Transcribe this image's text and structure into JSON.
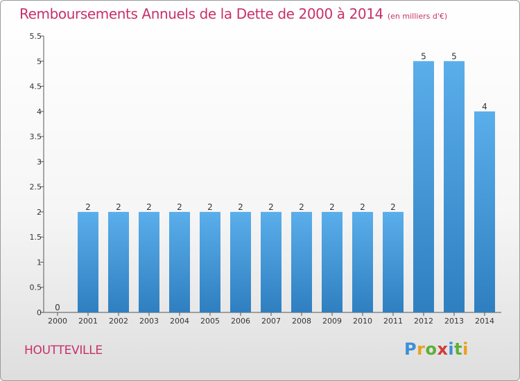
{
  "header": {
    "title": "Remboursements Annuels de la Dette de 2000 à 2014",
    "subtitle": "(en milliers d'€)"
  },
  "footer": {
    "commune": "HOUTTEVILLE",
    "logo_letters": [
      "P",
      "r",
      "o",
      "x",
      "i",
      "t",
      "i"
    ]
  },
  "colors": {
    "title": "#c8306a",
    "bar_top": "#5aaeea",
    "bar_bottom": "#2f7fc0",
    "logo": [
      "#3a8fd8",
      "#e8a020",
      "#5cb035",
      "#d63a3a",
      "#3a8fd8",
      "#5cb035",
      "#e8a020"
    ]
  },
  "chart_data": {
    "type": "bar",
    "title": "Remboursements Annuels de la Dette de 2000 à 2014",
    "unit": "(en milliers d'€)",
    "categories": [
      "2000",
      "2001",
      "2002",
      "2003",
      "2004",
      "2005",
      "2006",
      "2007",
      "2008",
      "2009",
      "2010",
      "2011",
      "2012",
      "2013",
      "2014"
    ],
    "values": [
      0,
      2,
      2,
      2,
      2,
      2,
      2,
      2,
      2,
      2,
      2,
      2,
      5,
      5,
      4
    ],
    "data_labels": [
      "0",
      "2",
      "2",
      "2",
      "2",
      "2",
      "2",
      "2",
      "2",
      "2",
      "2",
      "2",
      "5",
      "5",
      "4"
    ],
    "ylim": [
      0,
      5.5
    ],
    "yticks": [
      0,
      0.5,
      1,
      1.5,
      2,
      2.5,
      3,
      3.5,
      4,
      4.5,
      5,
      5.5
    ],
    "ytick_labels": [
      "0",
      "0.5",
      "1",
      "1.5",
      "2",
      "2.5",
      "3",
      "3.5",
      "4",
      "4.5",
      "5",
      "5.5"
    ],
    "grid": false,
    "legend": "none"
  }
}
